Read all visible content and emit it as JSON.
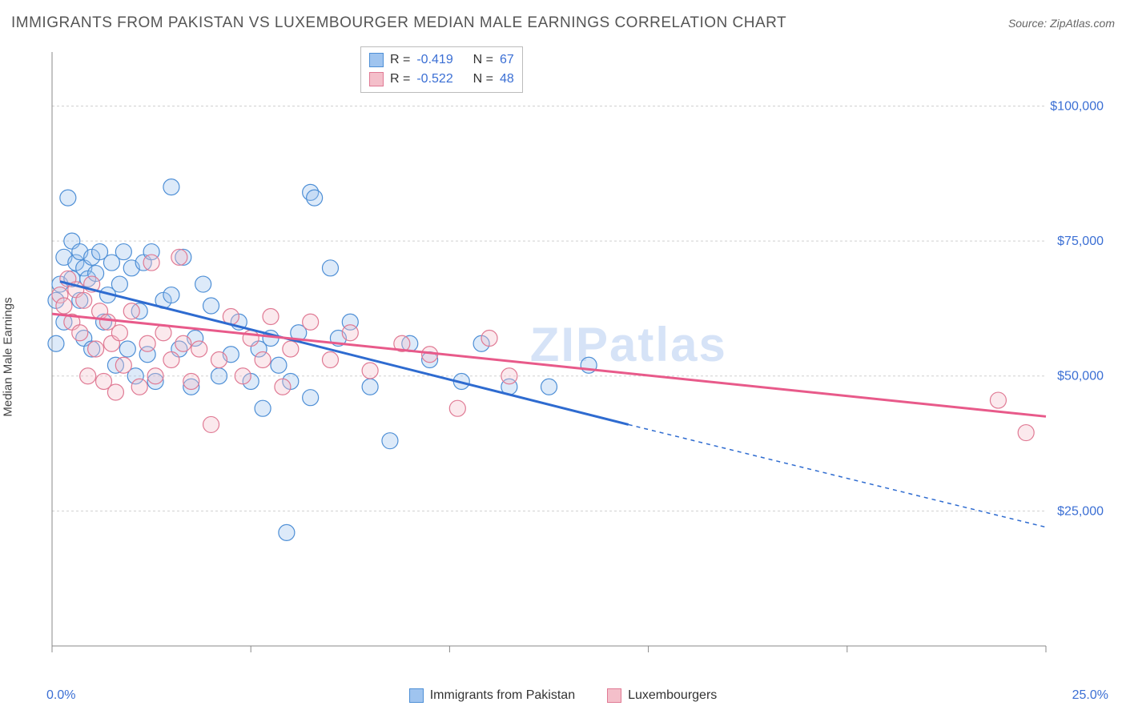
{
  "header": {
    "title": "IMMIGRANTS FROM PAKISTAN VS LUXEMBOURGER MEDIAN MALE EARNINGS CORRELATION CHART",
    "source_prefix": "Source: ",
    "source_name": "ZipAtlas.com"
  },
  "watermark": "ZIPatlas",
  "chart": {
    "type": "scatter",
    "y_axis_label": "Median Male Earnings",
    "x_range": [
      0,
      25
    ],
    "y_range": [
      0,
      110000
    ],
    "x_ticks": [
      0,
      5,
      10,
      15,
      20,
      25
    ],
    "y_gridlines": [
      25000,
      50000,
      75000,
      100000
    ],
    "y_tick_labels": [
      "$25,000",
      "$50,000",
      "$75,000",
      "$100,000"
    ],
    "x_min_label": "0.0%",
    "x_max_label": "25.0%",
    "background_color": "#ffffff",
    "grid_color": "#d0d0d0",
    "axis_color": "#888888",
    "tick_label_color": "#3b6fd4",
    "marker_radius": 10,
    "series": [
      {
        "key": "pakistan",
        "label": "Immigrants from Pakistan",
        "fill": "#9fc4ef",
        "stroke": "#4e8fd6",
        "trend_color": "#2e6bd0",
        "R": "-0.419",
        "N": "67",
        "trend": {
          "x1": 0.2,
          "y1": 67500,
          "x2": 14.5,
          "y2": 41000,
          "x2_ext": 25,
          "y2_ext": 22000
        },
        "points": [
          [
            0.1,
            64000
          ],
          [
            0.1,
            56000
          ],
          [
            0.2,
            67000
          ],
          [
            0.3,
            72000
          ],
          [
            0.3,
            60000
          ],
          [
            0.4,
            83000
          ],
          [
            0.5,
            75000
          ],
          [
            0.5,
            68000
          ],
          [
            0.6,
            71000
          ],
          [
            0.7,
            73000
          ],
          [
            0.7,
            64000
          ],
          [
            0.8,
            70000
          ],
          [
            0.8,
            57000
          ],
          [
            0.9,
            68000
          ],
          [
            1.0,
            72000
          ],
          [
            1.0,
            55000
          ],
          [
            1.1,
            69000
          ],
          [
            1.2,
            73000
          ],
          [
            1.3,
            60000
          ],
          [
            1.4,
            65000
          ],
          [
            1.5,
            71000
          ],
          [
            1.6,
            52000
          ],
          [
            1.7,
            67000
          ],
          [
            1.8,
            73000
          ],
          [
            1.9,
            55000
          ],
          [
            2.0,
            70000
          ],
          [
            2.1,
            50000
          ],
          [
            2.2,
            62000
          ],
          [
            2.3,
            71000
          ],
          [
            2.4,
            54000
          ],
          [
            2.5,
            73000
          ],
          [
            2.6,
            49000
          ],
          [
            2.8,
            64000
          ],
          [
            3.0,
            85000
          ],
          [
            3.0,
            65000
          ],
          [
            3.2,
            55000
          ],
          [
            3.3,
            72000
          ],
          [
            3.5,
            48000
          ],
          [
            3.6,
            57000
          ],
          [
            3.8,
            67000
          ],
          [
            4.0,
            63000
          ],
          [
            4.2,
            50000
          ],
          [
            4.5,
            54000
          ],
          [
            4.7,
            60000
          ],
          [
            5.0,
            49000
          ],
          [
            5.2,
            55000
          ],
          [
            5.3,
            44000
          ],
          [
            5.5,
            57000
          ],
          [
            5.7,
            52000
          ],
          [
            5.9,
            21000
          ],
          [
            6.0,
            49000
          ],
          [
            6.2,
            58000
          ],
          [
            6.5,
            84000
          ],
          [
            6.5,
            46000
          ],
          [
            6.6,
            83000
          ],
          [
            7.0,
            70000
          ],
          [
            7.2,
            57000
          ],
          [
            7.5,
            60000
          ],
          [
            8.0,
            48000
          ],
          [
            8.5,
            38000
          ],
          [
            9.0,
            56000
          ],
          [
            9.5,
            53000
          ],
          [
            10.3,
            49000
          ],
          [
            10.8,
            56000
          ],
          [
            11.5,
            48000
          ],
          [
            12.5,
            48000
          ],
          [
            13.5,
            52000
          ]
        ]
      },
      {
        "key": "luxembourg",
        "label": "Luxembourgers",
        "fill": "#f4bfca",
        "stroke": "#e07a94",
        "trend_color": "#e85a8a",
        "R": "-0.522",
        "N": "48",
        "trend": {
          "x1": 0.0,
          "y1": 61500,
          "x2": 25,
          "y2": 42500,
          "x2_ext": 25,
          "y2_ext": 42500
        },
        "points": [
          [
            0.2,
            65000
          ],
          [
            0.3,
            63000
          ],
          [
            0.4,
            68000
          ],
          [
            0.5,
            60000
          ],
          [
            0.6,
            66000
          ],
          [
            0.7,
            58000
          ],
          [
            0.8,
            64000
          ],
          [
            0.9,
            50000
          ],
          [
            1.0,
            67000
          ],
          [
            1.1,
            55000
          ],
          [
            1.2,
            62000
          ],
          [
            1.3,
            49000
          ],
          [
            1.4,
            60000
          ],
          [
            1.5,
            56000
          ],
          [
            1.6,
            47000
          ],
          [
            1.7,
            58000
          ],
          [
            1.8,
            52000
          ],
          [
            2.0,
            62000
          ],
          [
            2.2,
            48000
          ],
          [
            2.4,
            56000
          ],
          [
            2.5,
            71000
          ],
          [
            2.6,
            50000
          ],
          [
            2.8,
            58000
          ],
          [
            3.0,
            53000
          ],
          [
            3.2,
            72000
          ],
          [
            3.3,
            56000
          ],
          [
            3.5,
            49000
          ],
          [
            3.7,
            55000
          ],
          [
            4.0,
            41000
          ],
          [
            4.2,
            53000
          ],
          [
            4.5,
            61000
          ],
          [
            4.8,
            50000
          ],
          [
            5.0,
            57000
          ],
          [
            5.3,
            53000
          ],
          [
            5.5,
            61000
          ],
          [
            5.8,
            48000
          ],
          [
            6.0,
            55000
          ],
          [
            6.5,
            60000
          ],
          [
            7.0,
            53000
          ],
          [
            7.5,
            58000
          ],
          [
            8.0,
            51000
          ],
          [
            8.8,
            56000
          ],
          [
            9.5,
            54000
          ],
          [
            10.2,
            44000
          ],
          [
            11.0,
            57000
          ],
          [
            11.5,
            50000
          ],
          [
            23.8,
            45500
          ],
          [
            24.5,
            39500
          ]
        ]
      }
    ]
  },
  "correlation_box": {
    "R_label": "R =",
    "N_label": "N ="
  },
  "legend": {
    "items": [
      "pakistan",
      "luxembourg"
    ]
  }
}
